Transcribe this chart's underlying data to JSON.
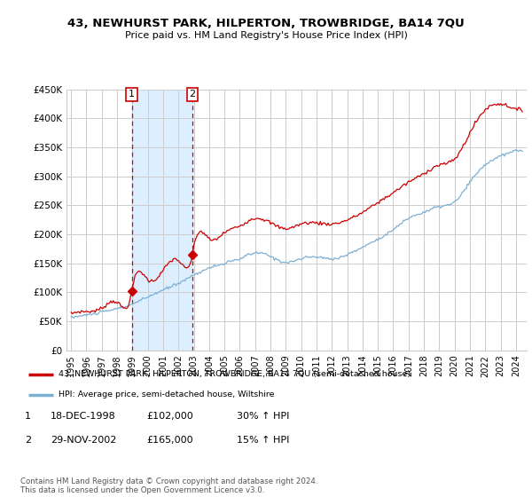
{
  "title": "43, NEWHURST PARK, HILPERTON, TROWBRIDGE, BA14 7QU",
  "subtitle": "Price paid vs. HM Land Registry's House Price Index (HPI)",
  "legend_line1": "43, NEWHURST PARK, HILPERTON, TROWBRIDGE, BA14 7QU (semi-detached house)",
  "legend_line2": "HPI: Average price, semi-detached house, Wiltshire",
  "footnote": "Contains HM Land Registry data © Crown copyright and database right 2024.\nThis data is licensed under the Open Government Licence v3.0.",
  "sale1_label": "1",
  "sale1_date": "18-DEC-1998",
  "sale1_price": "£102,000",
  "sale1_hpi": "30% ↑ HPI",
  "sale2_label": "2",
  "sale2_date": "29-NOV-2002",
  "sale2_price": "£165,000",
  "sale2_hpi": "15% ↑ HPI",
  "sale1_x": 1998.96,
  "sale1_y": 102000,
  "sale2_x": 2002.91,
  "sale2_y": 165000,
  "ylim": [
    0,
    450000
  ],
  "xlim_start": 1994.7,
  "xlim_end": 2024.7,
  "red_color": "#cc0000",
  "blue_color": "#7bafd4",
  "sale_vline_color": "#cc0000",
  "bg_highlight_color": "#ddeeff",
  "grid_color": "#cccccc",
  "yticks": [
    0,
    50000,
    100000,
    150000,
    200000,
    250000,
    300000,
    350000,
    400000,
    450000
  ],
  "ytick_labels": [
    "£0",
    "£50K",
    "£100K",
    "£150K",
    "£200K",
    "£250K",
    "£300K",
    "£350K",
    "£400K",
    "£450K"
  ],
  "xticks": [
    1995,
    1996,
    1997,
    1998,
    1999,
    2000,
    2001,
    2002,
    2003,
    2004,
    2005,
    2006,
    2007,
    2008,
    2009,
    2010,
    2011,
    2012,
    2013,
    2014,
    2015,
    2016,
    2017,
    2018,
    2019,
    2020,
    2021,
    2022,
    2023,
    2024
  ]
}
